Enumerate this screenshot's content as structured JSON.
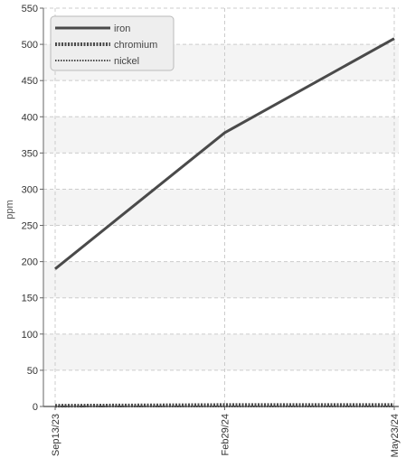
{
  "chart_data": {
    "type": "line",
    "title": "",
    "xlabel": "",
    "ylabel": "ppm",
    "ylim": [
      0,
      550
    ],
    "yticks": [
      0,
      50,
      100,
      150,
      200,
      250,
      300,
      350,
      400,
      450,
      500,
      550
    ],
    "ytick_labels": [
      "0",
      "50",
      "100",
      "150",
      "200",
      "250",
      "300",
      "350",
      "400",
      "450",
      "500",
      "550"
    ],
    "x": [
      "Sep13/23",
      "Feb29/24",
      "May23/24"
    ],
    "xtick_labels": [
      "Sep13/23",
      "Feb29/24",
      "May23/24"
    ],
    "series": [
      {
        "name": "iron",
        "values": [
          190,
          378,
          508
        ]
      },
      {
        "name": "chromium",
        "values": [
          1,
          2,
          2
        ]
      },
      {
        "name": "nickel",
        "values": [
          0,
          0,
          0
        ]
      }
    ],
    "grid": true,
    "legend_position": "top-left"
  },
  "colors": {
    "series": "#4a4a4a",
    "grid": "#cccccc",
    "band": "#f4f4f4",
    "axis": "#666666",
    "legend_bg": "#eeeeee",
    "legend_border": "#bbbbbb"
  }
}
